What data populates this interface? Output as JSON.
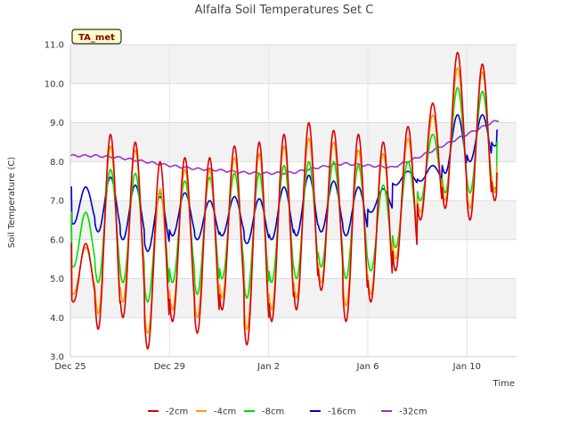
{
  "chart_data": {
    "type": "line",
    "title": "Alfalfa Soil Temperatures Set C",
    "xlabel": "Time",
    "ylabel": "Soil Temperature (C)",
    "badge": "TA_met",
    "ylim": [
      3.0,
      11.0
    ],
    "yticks": [
      "3.0",
      "4.0",
      "5.0",
      "6.0",
      "7.0",
      "8.0",
      "9.0",
      "10.0",
      "11.0"
    ],
    "x_start": "Dec 25",
    "x_end": "Jan 11 06:00",
    "xticks": [
      {
        "label": "Dec 25",
        "day": 0
      },
      {
        "label": "Dec 29",
        "day": 4
      },
      {
        "label": "Jan 2",
        "day": 8
      },
      {
        "label": "Jan 6",
        "day": 12
      },
      {
        "label": "Jan 10",
        "day": 16
      }
    ],
    "grid": true,
    "legend_position": "bottom",
    "series": [
      {
        "name": "-2cm",
        "color": "#dd0000",
        "daily_min": [
          4.4,
          3.7,
          4.0,
          3.2,
          3.9,
          3.6,
          4.2,
          3.3,
          3.9,
          4.2,
          4.7,
          3.9,
          4.4,
          5.2,
          6.5,
          6.8,
          6.5,
          7.0
        ],
        "daily_max": [
          5.9,
          8.7,
          8.5,
          8.0,
          8.1,
          8.1,
          8.4,
          8.5,
          8.7,
          9.0,
          8.8,
          8.7,
          8.5,
          8.9,
          9.5,
          10.8,
          10.5,
          10.5
        ],
        "first_value": 5.9,
        "last_value": 7.7
      },
      {
        "name": "-4cm",
        "color": "#ff9900",
        "daily_min": [
          4.6,
          4.1,
          4.4,
          3.6,
          4.2,
          4.0,
          4.5,
          3.7,
          4.2,
          4.5,
          4.9,
          4.3,
          4.6,
          5.5,
          6.7,
          7.0,
          6.8,
          7.2
        ],
        "daily_max": [
          5.8,
          8.4,
          8.3,
          7.3,
          7.8,
          7.8,
          8.1,
          8.2,
          8.4,
          8.6,
          8.5,
          8.3,
          8.2,
          8.6,
          9.2,
          10.4,
          10.3,
          10.2
        ],
        "first_value": 5.8,
        "last_value": 7.9
      },
      {
        "name": "-8cm",
        "color": "#00dd00",
        "daily_min": [
          5.3,
          4.9,
          4.9,
          4.4,
          4.9,
          4.6,
          5.0,
          4.5,
          4.9,
          5.0,
          5.3,
          5.0,
          5.2,
          5.8,
          7.0,
          7.2,
          7.2,
          7.3
        ],
        "daily_max": [
          6.7,
          7.8,
          7.7,
          7.2,
          7.5,
          7.6,
          7.7,
          7.7,
          7.9,
          8.0,
          8.0,
          7.9,
          7.4,
          8.0,
          8.7,
          9.9,
          9.8,
          9.0
        ],
        "first_value": 6.7,
        "last_value": 8.5
      },
      {
        "name": "-16cm",
        "color": "#0000cc",
        "daily_min": [
          6.4,
          6.2,
          6.0,
          5.7,
          6.1,
          6.0,
          6.1,
          5.9,
          6.0,
          6.1,
          6.2,
          6.1,
          6.7,
          7.4,
          7.5,
          7.7,
          8.0,
          8.4
        ],
        "daily_max": [
          7.35,
          7.6,
          7.4,
          7.1,
          7.2,
          7.0,
          7.1,
          7.05,
          7.35,
          7.65,
          7.5,
          7.35,
          7.3,
          7.75,
          7.9,
          9.2,
          9.2,
          9.1
        ],
        "first_value": 7.35,
        "last_value": 8.8
      },
      {
        "name": "-32cm",
        "color": "#9933cc",
        "points": [
          {
            "day": 0.0,
            "value": 8.15
          },
          {
            "day": 1.0,
            "value": 8.15
          },
          {
            "day": 2.0,
            "value": 8.1
          },
          {
            "day": 3.0,
            "value": 8.0
          },
          {
            "day": 4.0,
            "value": 7.9
          },
          {
            "day": 5.0,
            "value": 7.82
          },
          {
            "day": 6.0,
            "value": 7.78
          },
          {
            "day": 7.0,
            "value": 7.72
          },
          {
            "day": 8.0,
            "value": 7.7
          },
          {
            "day": 9.0,
            "value": 7.72
          },
          {
            "day": 10.0,
            "value": 7.85
          },
          {
            "day": 11.0,
            "value": 7.95
          },
          {
            "day": 12.0,
            "value": 7.9
          },
          {
            "day": 13.0,
            "value": 7.85
          },
          {
            "day": 14.0,
            "value": 8.1
          },
          {
            "day": 15.0,
            "value": 8.4
          },
          {
            "day": 16.0,
            "value": 8.7
          },
          {
            "day": 17.0,
            "value": 9.0
          },
          {
            "day": 17.25,
            "value": 9.05
          }
        ]
      }
    ]
  }
}
